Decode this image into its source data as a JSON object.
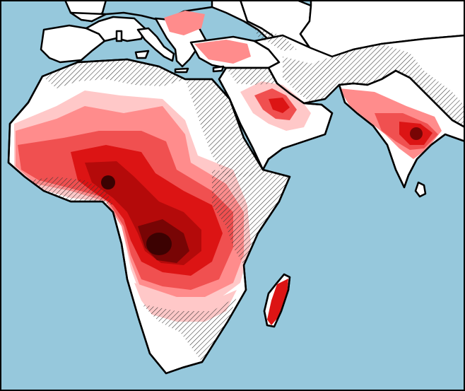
{
  "map": {
    "colors": {
      "ocean": "#96c8dc",
      "land": "#ffffff",
      "coast": "#000000",
      "hatch": "#333333",
      "levels": [
        "#ffc8c8",
        "#ff8c8c",
        "#f05050",
        "#dc1414",
        "#b40a0a",
        "#780505",
        "#3c0202"
      ]
    },
    "legend": "none",
    "labels": "none",
    "regions": {
      "landmasses": [
        "europe",
        "africa",
        "arabia",
        "india",
        "madagascar",
        "sri-lanka",
        "asia-minor",
        "iberia",
        "italy",
        "greece",
        "britain",
        "scandinavia",
        "sardinia",
        "sicily",
        "cyprus",
        "crete"
      ],
      "intensity_zones": [
        "west-africa",
        "central-africa",
        "southern-africa-fringe",
        "madagascar-east",
        "arabia-gulf",
        "south-asia",
        "balkans-anatolia"
      ],
      "hatched_zones": [
        "sahara-east",
        "horn-of-africa",
        "east-africa-coast",
        "southern-africa",
        "arabia-north",
        "iran-pakistan",
        "north-india",
        "black-sea-caucasus"
      ]
    }
  }
}
